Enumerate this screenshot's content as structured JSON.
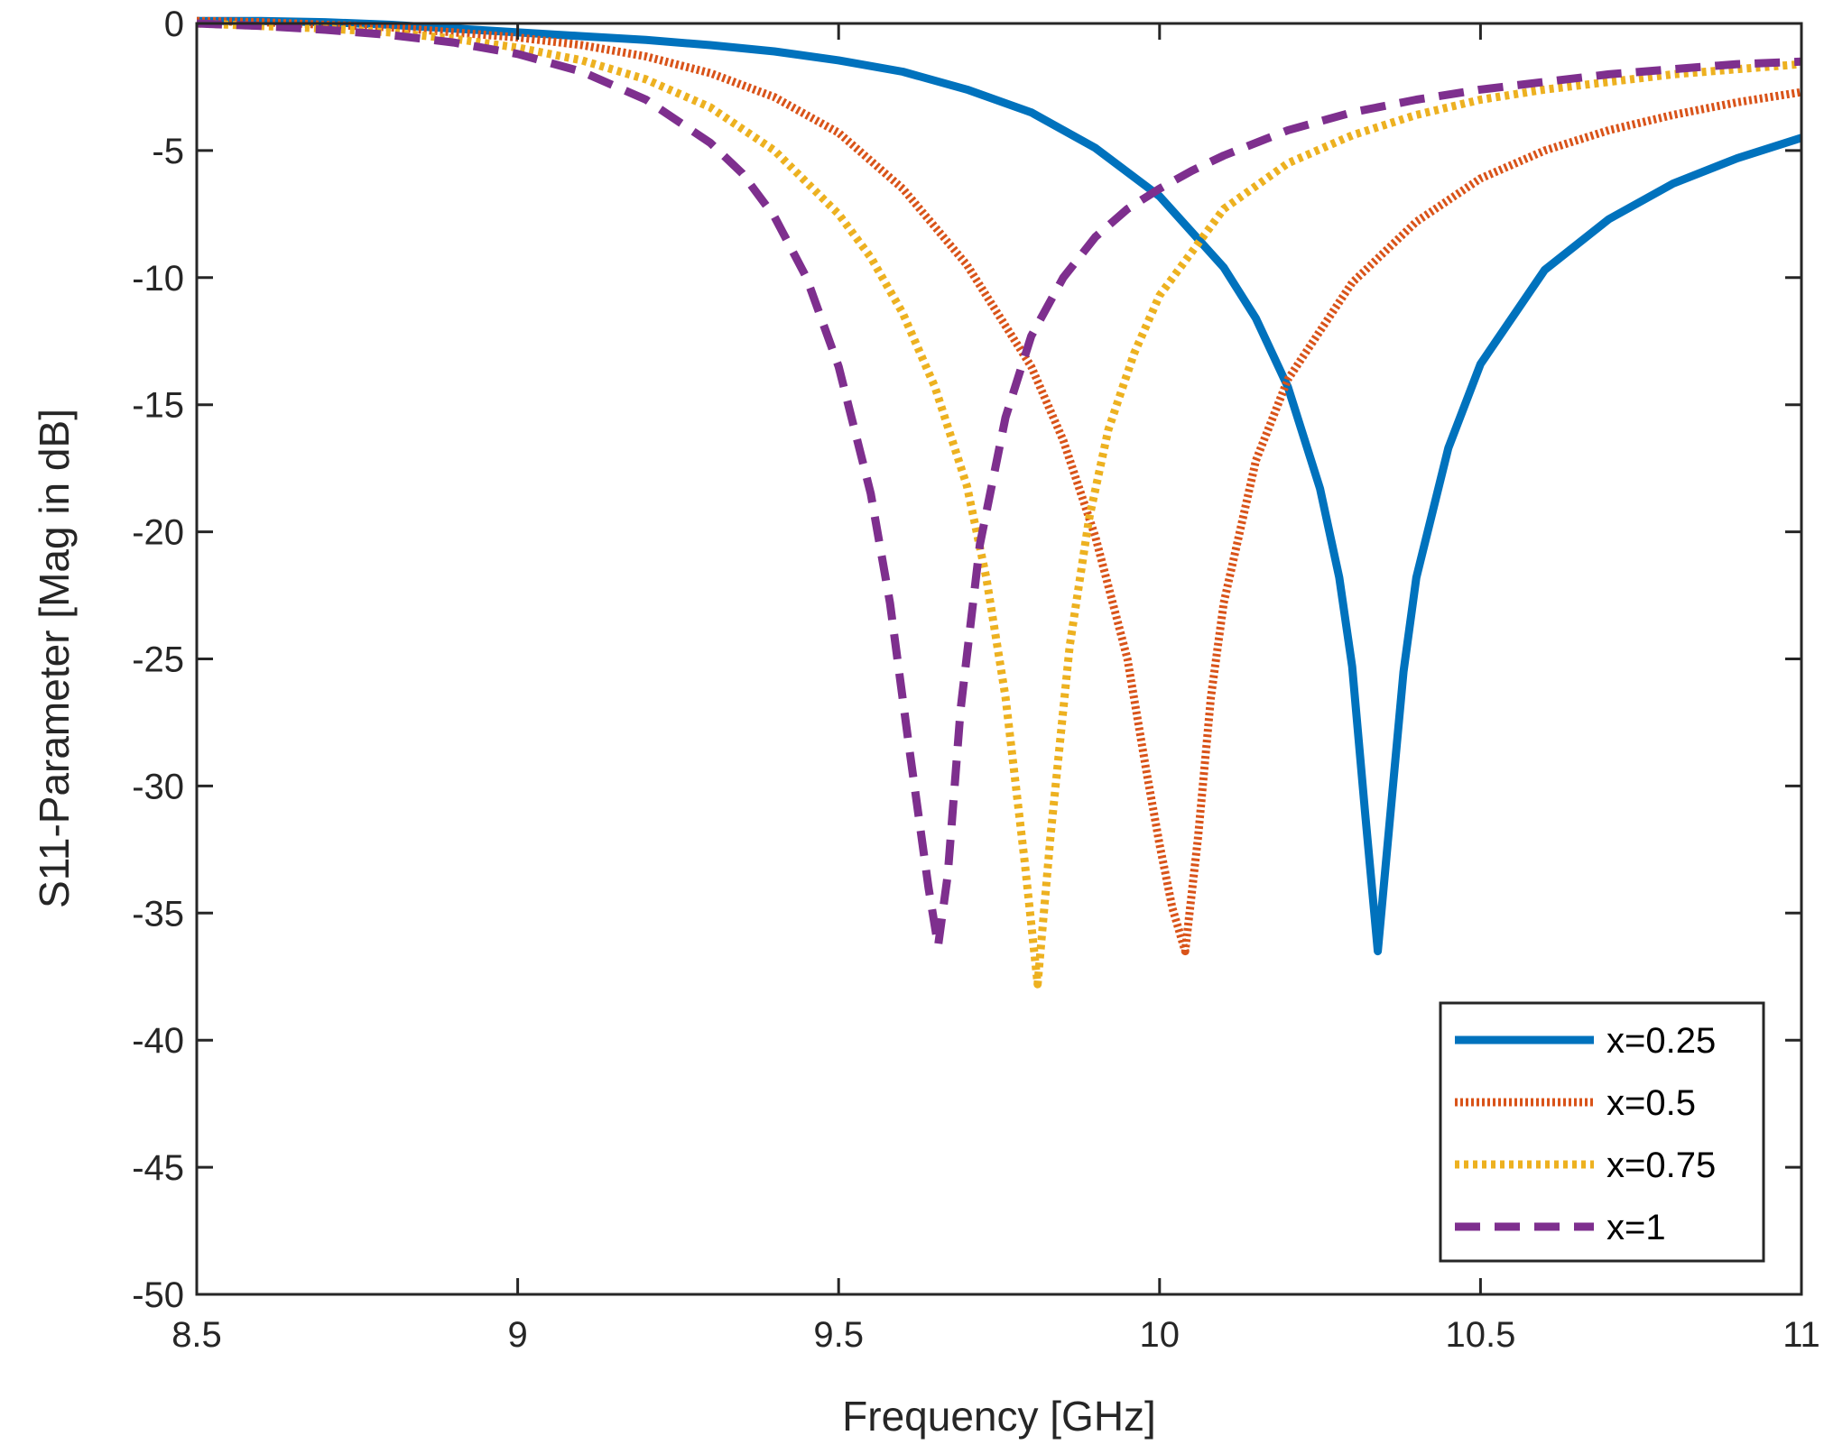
{
  "chart_data": {
    "type": "line",
    "title": "",
    "xlabel": "Frequency [GHz]",
    "ylabel": "S11-Parameter [Mag in dB]",
    "xlim": [
      8.5,
      11
    ],
    "ylim": [
      -50,
      0
    ],
    "xticks": [
      8.5,
      9,
      9.5,
      10,
      10.5,
      11
    ],
    "xtick_labels": [
      "8.5",
      "9",
      "9.5",
      "10",
      "10.5",
      "11"
    ],
    "yticks": [
      0,
      -5,
      -10,
      -15,
      -20,
      -25,
      -30,
      -35,
      -40,
      -45,
      -50
    ],
    "ytick_labels": [
      "0",
      "-5",
      "-10",
      "-15",
      "-20",
      "-25",
      "-30",
      "-35",
      "-40",
      "-45",
      "-50"
    ],
    "grid": false,
    "legend_position": "bottom-right",
    "series": [
      {
        "name": "x=0.25",
        "color": "#0072BD",
        "style": "solid",
        "x": [
          8.5,
          8.6,
          8.7,
          8.8,
          8.9,
          9.0,
          9.1,
          9.2,
          9.3,
          9.4,
          9.5,
          9.6,
          9.7,
          9.8,
          9.9,
          10.0,
          10.1,
          10.15,
          10.2,
          10.25,
          10.28,
          10.3,
          10.32,
          10.34,
          10.36,
          10.38,
          10.4,
          10.45,
          10.5,
          10.6,
          10.7,
          10.8,
          10.9,
          11.0
        ],
        "values": [
          0.1,
          0.1,
          0.05,
          -0.05,
          -0.2,
          -0.35,
          -0.5,
          -0.65,
          -0.85,
          -1.1,
          -1.45,
          -1.9,
          -2.6,
          -3.5,
          -4.9,
          -6.8,
          -9.6,
          -11.6,
          -14.3,
          -18.3,
          -21.8,
          -25.3,
          -31.0,
          -36.5,
          -31.0,
          -25.5,
          -21.8,
          -16.7,
          -13.4,
          -9.7,
          -7.7,
          -6.3,
          -5.3,
          -4.5
        ]
      },
      {
        "name": "x=0.5",
        "color": "#D95319",
        "style": "dotted-dense",
        "x": [
          8.5,
          8.6,
          8.7,
          8.8,
          8.9,
          9.0,
          9.1,
          9.2,
          9.3,
          9.4,
          9.5,
          9.6,
          9.7,
          9.8,
          9.85,
          9.9,
          9.95,
          9.98,
          10.0,
          10.02,
          10.04,
          10.06,
          10.08,
          10.1,
          10.15,
          10.2,
          10.3,
          10.4,
          10.5,
          10.6,
          10.7,
          10.8,
          10.9,
          11.0
        ],
        "values": [
          0.1,
          0.05,
          -0.05,
          -0.15,
          -0.35,
          -0.55,
          -0.85,
          -1.3,
          -1.95,
          -2.9,
          -4.3,
          -6.5,
          -9.5,
          -13.5,
          -16.4,
          -20.2,
          -25.0,
          -29.5,
          -32.3,
          -34.8,
          -36.5,
          -32.0,
          -26.5,
          -22.8,
          -17.2,
          -14.0,
          -10.2,
          -7.8,
          -6.1,
          -5.0,
          -4.2,
          -3.6,
          -3.1,
          -2.7
        ]
      },
      {
        "name": "x=0.75",
        "color": "#EDB120",
        "style": "dotted",
        "x": [
          8.5,
          8.6,
          8.7,
          8.8,
          8.9,
          9.0,
          9.1,
          9.2,
          9.3,
          9.4,
          9.5,
          9.55,
          9.6,
          9.65,
          9.7,
          9.73,
          9.76,
          9.79,
          9.81,
          9.83,
          9.86,
          9.89,
          9.92,
          9.96,
          10.0,
          10.1,
          10.2,
          10.3,
          10.4,
          10.5,
          10.6,
          10.7,
          10.8,
          10.9,
          11.0
        ],
        "values": [
          0.0,
          -0.1,
          -0.2,
          -0.35,
          -0.6,
          -0.95,
          -1.45,
          -2.2,
          -3.3,
          -5.0,
          -7.5,
          -9.2,
          -11.4,
          -14.3,
          -18.2,
          -21.8,
          -26.5,
          -33.0,
          -37.8,
          -32.0,
          -24.5,
          -19.5,
          -16.0,
          -13.0,
          -10.7,
          -7.3,
          -5.5,
          -4.4,
          -3.6,
          -3.0,
          -2.6,
          -2.3,
          -2.0,
          -1.8,
          -1.6
        ]
      },
      {
        "name": "x=1",
        "color": "#7E2F8E",
        "style": "dashed",
        "x": [
          8.5,
          8.6,
          8.7,
          8.8,
          8.9,
          9.0,
          9.1,
          9.2,
          9.3,
          9.35,
          9.4,
          9.45,
          9.5,
          9.55,
          9.58,
          9.61,
          9.64,
          9.655,
          9.67,
          9.69,
          9.72,
          9.76,
          9.8,
          9.85,
          9.9,
          9.95,
          10.0,
          10.05,
          10.1,
          10.2,
          10.3,
          10.4,
          10.5,
          10.6,
          10.7,
          10.8,
          10.9,
          11.0
        ],
        "values": [
          0.0,
          -0.1,
          -0.25,
          -0.45,
          -0.75,
          -1.2,
          -1.9,
          -3.0,
          -4.7,
          -5.9,
          -7.6,
          -10.0,
          -13.5,
          -18.5,
          -22.8,
          -28.5,
          -34.0,
          -36.3,
          -33.5,
          -27.0,
          -20.5,
          -15.5,
          -12.3,
          -10.0,
          -8.4,
          -7.3,
          -6.5,
          -5.8,
          -5.2,
          -4.2,
          -3.5,
          -3.0,
          -2.6,
          -2.3,
          -2.0,
          -1.8,
          -1.6,
          -1.5
        ]
      }
    ]
  }
}
